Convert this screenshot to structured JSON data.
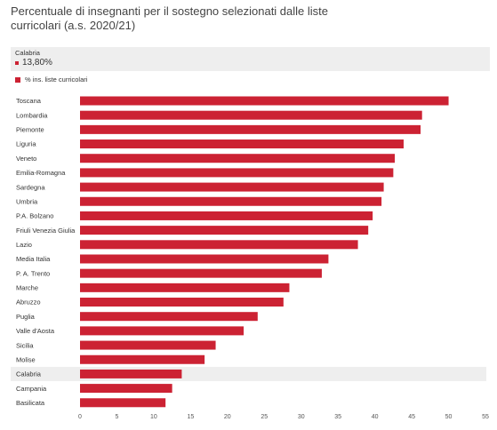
{
  "title": "Percentuale di insegnanti per il sostegno selezionati dalle liste curricolari (a.s. 2020/21)",
  "tooltip": {
    "label": "Calabria",
    "value": "13,80%"
  },
  "colors": {
    "bar": "#cc2233",
    "highlight_row": "#eeeeee",
    "tooltip_bg": "#eeeeee"
  },
  "chart_data": {
    "type": "bar",
    "orientation": "horizontal",
    "title": "Percentuale di insegnanti per il sostegno selezionati dalle liste curricolari (a.s. 2020/21)",
    "legend": {
      "entries": [
        "% ins. liste curricolari"
      ],
      "placement": "top-left"
    },
    "series": [
      {
        "name": "% ins. liste curricolari",
        "color": "#cc2233"
      }
    ],
    "categories": [
      "Toscana",
      "Lombardia",
      "Piemonte",
      "Liguria",
      "Veneto",
      "Emilia-Romagna",
      "Sardegna",
      "Umbria",
      "P.A. Bolzano",
      "Friuli Venezia Giulia",
      "Lazio",
      "Media Italia",
      "P. A. Trento",
      "Marche",
      "Abruzzo",
      "Puglia",
      "Valle d'Aosta",
      "Sicilia",
      "Molise",
      "Calabria",
      "Campania",
      "Basilicata"
    ],
    "values": [
      50.0,
      46.4,
      46.2,
      43.9,
      42.7,
      42.5,
      41.2,
      40.9,
      39.7,
      39.1,
      37.7,
      33.7,
      32.8,
      28.4,
      27.6,
      24.1,
      22.2,
      18.4,
      16.9,
      13.8,
      12.5,
      11.6
    ],
    "highlighted_category": "Calabria",
    "xlim": [
      0,
      55
    ],
    "xticks": [
      0,
      5,
      10,
      15,
      20,
      25,
      30,
      35,
      40,
      45,
      50,
      55
    ],
    "grid": false
  }
}
